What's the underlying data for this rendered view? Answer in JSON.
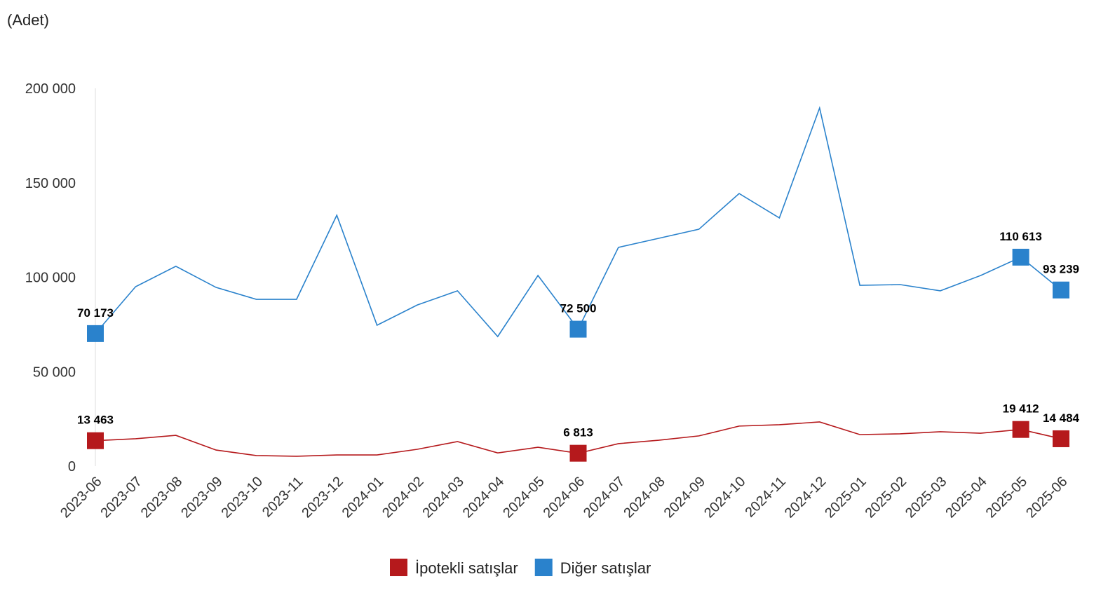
{
  "chart_data": {
    "type": "line",
    "unit_label": "(Adet)",
    "ylim": [
      0,
      200000
    ],
    "yticks": [
      0,
      50000,
      100000,
      150000,
      200000
    ],
    "ytick_labels": [
      "0",
      "50 000",
      "100 000",
      "150 000",
      "200 000"
    ],
    "grid": false,
    "legend_position": "bottom",
    "categories": [
      "2023-06",
      "2023-07",
      "2023-08",
      "2023-09",
      "2023-10",
      "2023-11",
      "2023-12",
      "2024-01",
      "2024-02",
      "2024-03",
      "2024-04",
      "2024-05",
      "2024-06",
      "2024-07",
      "2024-08",
      "2024-09",
      "2024-10",
      "2024-11",
      "2024-12",
      "2025-01",
      "2025-02",
      "2025-03",
      "2025-04",
      "2025-05",
      "2025-06"
    ],
    "series": [
      {
        "name": "İpotekli satışlar",
        "color": "#b5191c",
        "values": [
          13463,
          14500,
          16300,
          8500,
          5600,
          5200,
          5900,
          5900,
          8900,
          13000,
          7000,
          10000,
          6813,
          11900,
          13700,
          16000,
          21200,
          21900,
          23400,
          16700,
          17100,
          18200,
          17400,
          19412,
          14484
        ],
        "labeled_points": {
          "2023-06": "13 463",
          "2024-06": "6 813",
          "2025-05": "19 412",
          "2025-06": "14 484"
        }
      },
      {
        "name": "Diğer satışlar",
        "color": "#2a82cc",
        "values": [
          70173,
          95000,
          105800,
          94600,
          88300,
          88300,
          132800,
          74600,
          85300,
          92800,
          68600,
          100900,
          72500,
          115800,
          120600,
          125400,
          144300,
          131400,
          189600,
          95700,
          96100,
          92800,
          100900,
          110613,
          93239
        ],
        "labeled_points": {
          "2023-06": "70 173",
          "2024-06": "72 500",
          "2025-05": "110 613",
          "2025-06": "93 239"
        }
      }
    ]
  }
}
